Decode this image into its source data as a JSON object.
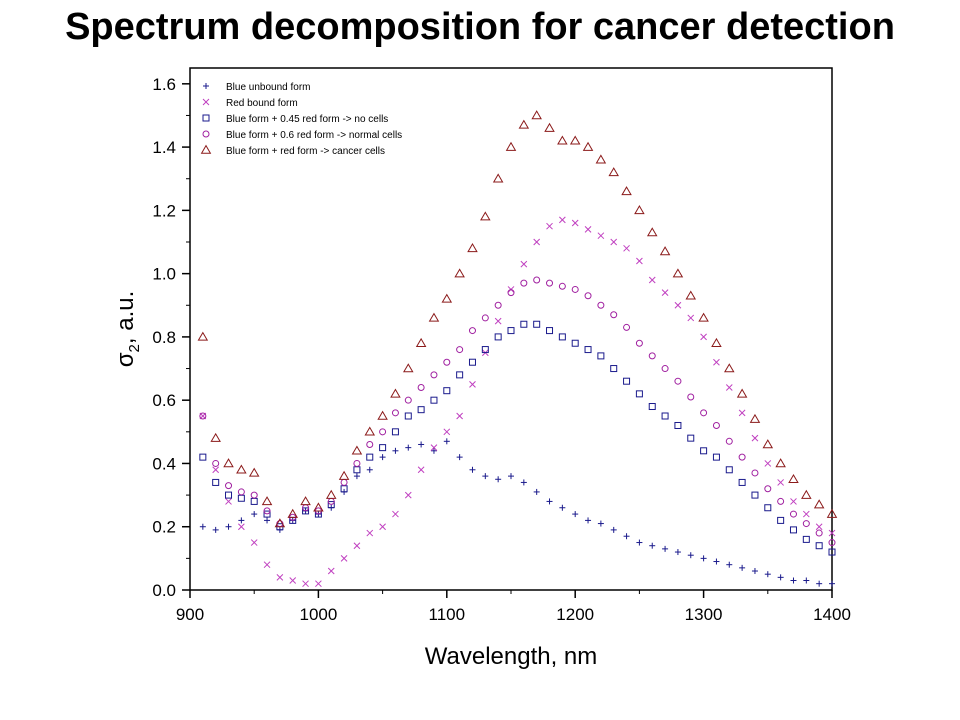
{
  "title": "Spectrum decomposition for cancer detection",
  "chart_data": {
    "type": "scatter",
    "title": "Spectrum decomposition for cancer detection",
    "xlabel": "Wavelength, nm",
    "ylabel_symbol": "σ",
    "ylabel_subscript": "2",
    "ylabel_unit": ", a.u.",
    "xlim": [
      900,
      1400
    ],
    "ylim": [
      0,
      1.65
    ],
    "x_ticks": [
      900,
      1000,
      1100,
      1200,
      1300,
      1400
    ],
    "y_ticks": [
      0.0,
      0.2,
      0.4,
      0.6,
      0.8,
      1.0,
      1.2,
      1.4,
      1.6
    ],
    "x_tick_labels": [
      "900",
      "1000",
      "1100",
      "1200",
      "1300",
      "1400"
    ],
    "y_tick_labels": [
      "0.0",
      "0.2",
      "0.4",
      "0.6",
      "0.8",
      "1.0",
      "1.2",
      "1.4",
      "1.6"
    ],
    "grid": false,
    "legend_position": "top-left",
    "series": [
      {
        "name": "Blue unbound form",
        "marker": "plus",
        "color": "#1a1a8c",
        "x": [
          910,
          920,
          930,
          940,
          950,
          960,
          970,
          980,
          990,
          1000,
          1010,
          1020,
          1030,
          1040,
          1050,
          1060,
          1070,
          1080,
          1090,
          1100,
          1110,
          1120,
          1130,
          1140,
          1150,
          1160,
          1170,
          1180,
          1190,
          1200,
          1210,
          1220,
          1230,
          1240,
          1250,
          1260,
          1270,
          1280,
          1290,
          1300,
          1310,
          1320,
          1330,
          1340,
          1350,
          1360,
          1370,
          1380,
          1390,
          1400
        ],
        "y": [
          0.2,
          0.19,
          0.2,
          0.22,
          0.24,
          0.22,
          0.19,
          0.22,
          0.25,
          0.24,
          0.26,
          0.31,
          0.36,
          0.38,
          0.42,
          0.44,
          0.45,
          0.46,
          0.44,
          0.47,
          0.42,
          0.38,
          0.36,
          0.35,
          0.36,
          0.34,
          0.31,
          0.28,
          0.26,
          0.24,
          0.22,
          0.21,
          0.19,
          0.17,
          0.15,
          0.14,
          0.13,
          0.12,
          0.11,
          0.1,
          0.09,
          0.08,
          0.07,
          0.06,
          0.05,
          0.04,
          0.03,
          0.03,
          0.02,
          0.02
        ]
      },
      {
        "name": "Red bound form",
        "marker": "x",
        "color": "#c040c0",
        "x": [
          910,
          920,
          930,
          940,
          950,
          960,
          970,
          980,
          990,
          1000,
          1010,
          1020,
          1030,
          1040,
          1050,
          1060,
          1070,
          1080,
          1090,
          1100,
          1110,
          1120,
          1130,
          1140,
          1150,
          1160,
          1170,
          1180,
          1190,
          1200,
          1210,
          1220,
          1230,
          1240,
          1250,
          1260,
          1270,
          1280,
          1290,
          1300,
          1310,
          1320,
          1330,
          1340,
          1350,
          1360,
          1370,
          1380,
          1390,
          1400
        ],
        "y": [
          0.55,
          0.38,
          0.28,
          0.2,
          0.15,
          0.08,
          0.04,
          0.03,
          0.02,
          0.02,
          0.06,
          0.1,
          0.14,
          0.18,
          0.2,
          0.24,
          0.3,
          0.38,
          0.45,
          0.5,
          0.55,
          0.65,
          0.75,
          0.85,
          0.95,
          1.03,
          1.1,
          1.15,
          1.17,
          1.16,
          1.14,
          1.12,
          1.1,
          1.08,
          1.04,
          0.98,
          0.94,
          0.9,
          0.86,
          0.8,
          0.72,
          0.64,
          0.56,
          0.48,
          0.4,
          0.34,
          0.28,
          0.24,
          0.2,
          0.18
        ]
      },
      {
        "name": "Blue form + 0.45 red form -> no cells",
        "marker": "square",
        "color": "#1a1a8c",
        "x": [
          910,
          920,
          930,
          940,
          950,
          960,
          970,
          980,
          990,
          1000,
          1010,
          1020,
          1030,
          1040,
          1050,
          1060,
          1070,
          1080,
          1090,
          1100,
          1110,
          1120,
          1130,
          1140,
          1150,
          1160,
          1170,
          1180,
          1190,
          1200,
          1210,
          1220,
          1230,
          1240,
          1250,
          1260,
          1270,
          1280,
          1290,
          1300,
          1310,
          1320,
          1330,
          1340,
          1350,
          1360,
          1370,
          1380,
          1390,
          1400
        ],
        "y": [
          0.42,
          0.34,
          0.3,
          0.29,
          0.28,
          0.24,
          0.2,
          0.22,
          0.25,
          0.24,
          0.27,
          0.32,
          0.38,
          0.42,
          0.45,
          0.5,
          0.55,
          0.57,
          0.6,
          0.63,
          0.68,
          0.72,
          0.76,
          0.8,
          0.82,
          0.84,
          0.84,
          0.82,
          0.8,
          0.78,
          0.76,
          0.74,
          0.7,
          0.66,
          0.62,
          0.58,
          0.55,
          0.52,
          0.48,
          0.44,
          0.42,
          0.38,
          0.34,
          0.3,
          0.26,
          0.22,
          0.19,
          0.16,
          0.14,
          0.12
        ]
      },
      {
        "name": "Blue form + 0.6 red form -> normal cells",
        "marker": "circle",
        "color": "#a020a0",
        "x": [
          910,
          920,
          930,
          940,
          950,
          960,
          970,
          980,
          990,
          1000,
          1010,
          1020,
          1030,
          1040,
          1050,
          1060,
          1070,
          1080,
          1090,
          1100,
          1110,
          1120,
          1130,
          1140,
          1150,
          1160,
          1170,
          1180,
          1190,
          1200,
          1210,
          1220,
          1230,
          1240,
          1250,
          1260,
          1270,
          1280,
          1290,
          1300,
          1310,
          1320,
          1330,
          1340,
          1350,
          1360,
          1370,
          1380,
          1390,
          1400
        ],
        "y": [
          0.55,
          0.4,
          0.33,
          0.31,
          0.3,
          0.25,
          0.21,
          0.23,
          0.26,
          0.25,
          0.28,
          0.34,
          0.4,
          0.46,
          0.5,
          0.56,
          0.6,
          0.64,
          0.68,
          0.72,
          0.76,
          0.82,
          0.86,
          0.9,
          0.94,
          0.97,
          0.98,
          0.97,
          0.96,
          0.95,
          0.93,
          0.9,
          0.87,
          0.83,
          0.78,
          0.74,
          0.7,
          0.66,
          0.61,
          0.56,
          0.52,
          0.47,
          0.42,
          0.37,
          0.32,
          0.28,
          0.24,
          0.21,
          0.18,
          0.15
        ]
      },
      {
        "name": "Blue form + red form -> cancer cells",
        "marker": "triangle",
        "color": "#8b1a1a",
        "x": [
          910,
          920,
          930,
          940,
          950,
          960,
          970,
          980,
          990,
          1000,
          1010,
          1020,
          1030,
          1040,
          1050,
          1060,
          1070,
          1080,
          1090,
          1100,
          1110,
          1120,
          1130,
          1140,
          1150,
          1160,
          1170,
          1180,
          1190,
          1200,
          1210,
          1220,
          1230,
          1240,
          1250,
          1260,
          1270,
          1280,
          1290,
          1300,
          1310,
          1320,
          1330,
          1340,
          1350,
          1360,
          1370,
          1380,
          1390,
          1400
        ],
        "y": [
          0.8,
          0.48,
          0.4,
          0.38,
          0.37,
          0.28,
          0.21,
          0.24,
          0.28,
          0.26,
          0.3,
          0.36,
          0.44,
          0.5,
          0.55,
          0.62,
          0.7,
          0.78,
          0.86,
          0.92,
          1.0,
          1.08,
          1.18,
          1.3,
          1.4,
          1.47,
          1.5,
          1.46,
          1.42,
          1.42,
          1.4,
          1.36,
          1.32,
          1.26,
          1.2,
          1.13,
          1.07,
          1.0,
          0.93,
          0.86,
          0.78,
          0.7,
          0.62,
          0.54,
          0.46,
          0.4,
          0.35,
          0.3,
          0.27,
          0.24
        ]
      }
    ]
  }
}
